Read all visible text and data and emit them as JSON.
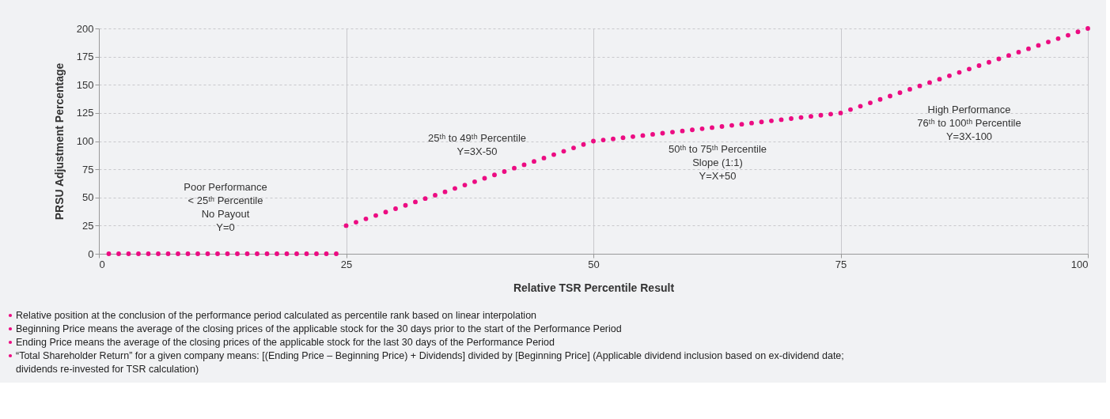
{
  "chart_data": {
    "type": "scatter",
    "xlabel": "Relative TSR Percentile Result",
    "ylabel": "PRSU Adjustment Percentage",
    "x": [
      1,
      2,
      3,
      4,
      5,
      6,
      7,
      8,
      9,
      10,
      11,
      12,
      13,
      14,
      15,
      16,
      17,
      18,
      19,
      20,
      21,
      22,
      23,
      24,
      25,
      26,
      27,
      28,
      29,
      30,
      31,
      32,
      33,
      34,
      35,
      36,
      37,
      38,
      39,
      40,
      41,
      42,
      43,
      44,
      45,
      46,
      47,
      48,
      49,
      50,
      51,
      52,
      53,
      54,
      55,
      56,
      57,
      58,
      59,
      60,
      61,
      62,
      63,
      64,
      65,
      66,
      67,
      68,
      69,
      70,
      71,
      72,
      73,
      74,
      75,
      76,
      77,
      78,
      79,
      80,
      81,
      82,
      83,
      84,
      85,
      86,
      87,
      88,
      89,
      90,
      91,
      92,
      93,
      94,
      95,
      96,
      97,
      98,
      99,
      100
    ],
    "series": [
      {
        "color": "#ec0c82",
        "values": [
          0,
          0,
          0,
          0,
          0,
          0,
          0,
          0,
          0,
          0,
          0,
          0,
          0,
          0,
          0,
          0,
          0,
          0,
          0,
          0,
          0,
          0,
          0,
          0,
          25,
          28,
          31,
          34,
          37,
          40,
          43,
          46,
          49,
          52,
          55,
          58,
          61,
          64,
          67,
          70,
          73,
          76,
          79,
          82,
          85,
          88,
          91,
          94,
          97,
          100,
          101,
          102,
          103,
          104,
          105,
          106,
          107,
          108,
          109,
          110,
          111,
          112,
          113,
          114,
          115,
          116,
          117,
          118,
          119,
          120,
          121,
          122,
          123,
          124,
          125,
          128,
          131,
          134,
          137,
          140,
          143,
          146,
          149,
          152,
          155,
          158,
          161,
          164,
          167,
          170,
          173,
          176,
          179,
          182,
          185,
          188,
          191,
          194,
          197,
          200
        ]
      }
    ],
    "marker": "circle",
    "xlim": [
      0,
      100
    ],
    "xticks": [
      0,
      25,
      50,
      75,
      100
    ],
    "ylim": [
      0,
      200
    ],
    "yticks": [
      0,
      25,
      50,
      75,
      100,
      125,
      150,
      175,
      200
    ],
    "grid": true,
    "annotations": [
      "Poor Performance\n< 25ᵗʰ Percentile\nNo Payout\nY=0",
      "25ᵗʰ to 49ᵗʰ Percentile\nY=3X-50",
      "50ᵗʰ to 75ᵗʰ Percentile\nSlope (1:1)\nY=X+50",
      "High Performance\n76ᵗʰ to 100ᵗʰ Percentile\nY=3X-100",
      "Relative position at the conclusion of the performance period calculated as percentile rank based on linear interpolation",
      "Beginning Price means the average of the closing prices of the applicable stock for the 30 days prior to the start of the Performance Period",
      "Ending Price means the average of the closing prices of the applicable stock for the last 30 days of the Performance Period",
      "“Total Shareholder Return” for a given company means: [(Ending Price – Beginning Price) + Dividends] divided by [Beginning Price] (Applicable dividend inclusion based on ex-dividend date; dividends re-invested for TSR calculation)"
    ]
  }
}
